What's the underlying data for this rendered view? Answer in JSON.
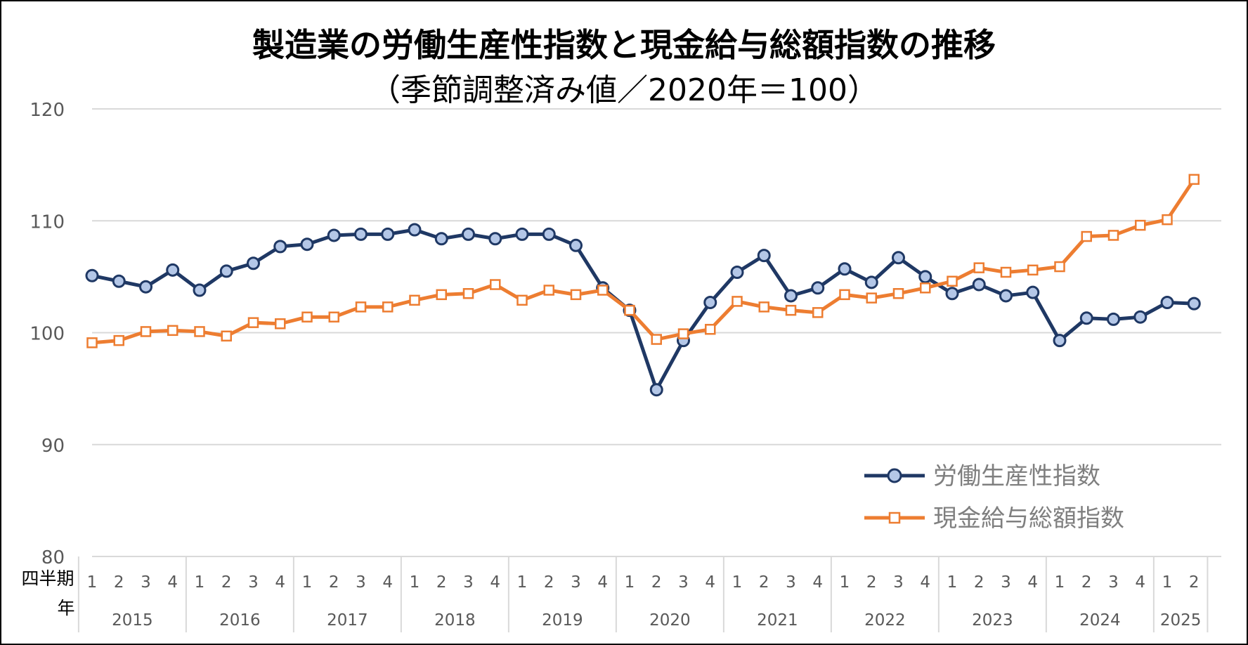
{
  "chart_data": {
    "type": "line",
    "title": "製造業の労働生産性指数と現金給与総額指数の推移",
    "subtitle": "（季節調整済み値／2020年＝100）",
    "ylim": [
      80,
      120
    ],
    "yticks": [
      80,
      90,
      100,
      110,
      120
    ],
    "grid": true,
    "legend_position": "bottom-right",
    "row_labels": [
      "四半期",
      "年"
    ],
    "quarters": [
      "1",
      "2",
      "3",
      "4",
      "1",
      "2",
      "3",
      "4",
      "1",
      "2",
      "3",
      "4",
      "1",
      "2",
      "3",
      "4",
      "1",
      "2",
      "3",
      "4",
      "1",
      "2",
      "3",
      "4",
      "1",
      "2",
      "3",
      "4",
      "1",
      "2",
      "3",
      "4",
      "1",
      "2",
      "3",
      "4",
      "1",
      "2",
      "3",
      "4",
      "1",
      "2"
    ],
    "years": [
      {
        "label": "2015",
        "count": 4
      },
      {
        "label": "2016",
        "count": 4
      },
      {
        "label": "2017",
        "count": 4
      },
      {
        "label": "2018",
        "count": 4
      },
      {
        "label": "2019",
        "count": 4
      },
      {
        "label": "2020",
        "count": 4
      },
      {
        "label": "2021",
        "count": 4
      },
      {
        "label": "2022",
        "count": 4
      },
      {
        "label": "2023",
        "count": 4
      },
      {
        "label": "2024",
        "count": 4
      },
      {
        "label": "2025",
        "count": 2
      }
    ],
    "series": [
      {
        "name": "労働生産性指数",
        "color": "#1f3864",
        "marker": "circle",
        "marker_fill": "#b4c7e7",
        "values": [
          105.1,
          104.6,
          104.1,
          105.6,
          103.8,
          105.5,
          106.2,
          107.7,
          107.9,
          108.7,
          108.8,
          108.8,
          109.2,
          108.4,
          108.8,
          108.4,
          108.8,
          108.8,
          107.8,
          104.0,
          102.0,
          94.9,
          99.3,
          102.7,
          105.4,
          106.9,
          103.3,
          104.0,
          105.7,
          104.5,
          106.7,
          105.0,
          103.5,
          104.3,
          103.3,
          103.6,
          99.3,
          101.3,
          101.2,
          101.4,
          102.7,
          102.6
        ]
      },
      {
        "name": "現金給与総額指数",
        "color": "#ed7d31",
        "marker": "square",
        "marker_fill": "#ffffff",
        "values": [
          99.1,
          99.3,
          100.1,
          100.2,
          100.1,
          99.7,
          100.9,
          100.8,
          101.4,
          101.4,
          102.3,
          102.3,
          102.9,
          103.4,
          103.5,
          104.3,
          102.9,
          103.8,
          103.4,
          103.8,
          102.0,
          99.4,
          99.9,
          100.3,
          102.8,
          102.3,
          102.0,
          101.8,
          103.4,
          103.1,
          103.5,
          104.0,
          104.6,
          105.8,
          105.4,
          105.6,
          105.9,
          108.6,
          108.7,
          109.6,
          110.1,
          113.7
        ]
      }
    ]
  },
  "colors": {
    "gridline": "#d9d9d9",
    "axis_text": "#595959",
    "legend_text": "#7f7f7f"
  }
}
